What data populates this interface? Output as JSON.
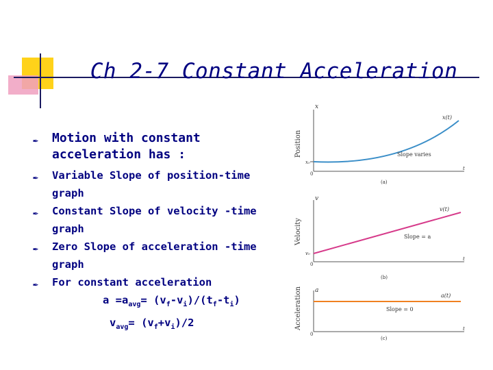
{
  "title": "Ch 2-7 Constant Acceleration",
  "bullets": {
    "b1": "Motion with constant acceleration has :",
    "b2": "Variable Slope of position-time graph",
    "b3": "Constant Slope of velocity -time graph",
    "b4": "Zero Slope of acceleration -time graph",
    "b5": "For constant acceleration"
  },
  "formula1": {
    "a": "a =a",
    "avg": "avg",
    "eq": "= (v",
    "f1": "f",
    "minus": "-v",
    "i1": "i",
    "mid": ")/(t",
    "f2": "f",
    "minus2": "-t",
    "i2": "i",
    "close": ")"
  },
  "formula2": {
    "v": "v",
    "avg": "avg",
    "eq": "= (v",
    "f": "f",
    "plus": "+v",
    "i": "i",
    "close": ")/2"
  },
  "graphs": {
    "position": {
      "ylabel": "Position",
      "yaxis": "x",
      "curve": "x(t)",
      "slope": "Slope varies",
      "y0": "x₀",
      "origin": "0",
      "xaxis": "t",
      "caption": "(a)"
    },
    "velocity": {
      "ylabel": "Velocity",
      "yaxis": "v",
      "curve": "v(t)",
      "slope": "Slope = a",
      "y0": "v₀",
      "origin": "0",
      "xaxis": "t",
      "caption": "(b)"
    },
    "acceleration": {
      "ylabel": "Acceleration",
      "yaxis": "a",
      "curve": "a(t)",
      "slope": "Slope = 0",
      "origin": "0",
      "xaxis": "t",
      "caption": "(c)"
    }
  },
  "colors": {
    "title": "#000080",
    "position_curve": "#3a8ec8",
    "velocity_line": "#d63a8a",
    "acceleration_line": "#f08020"
  }
}
